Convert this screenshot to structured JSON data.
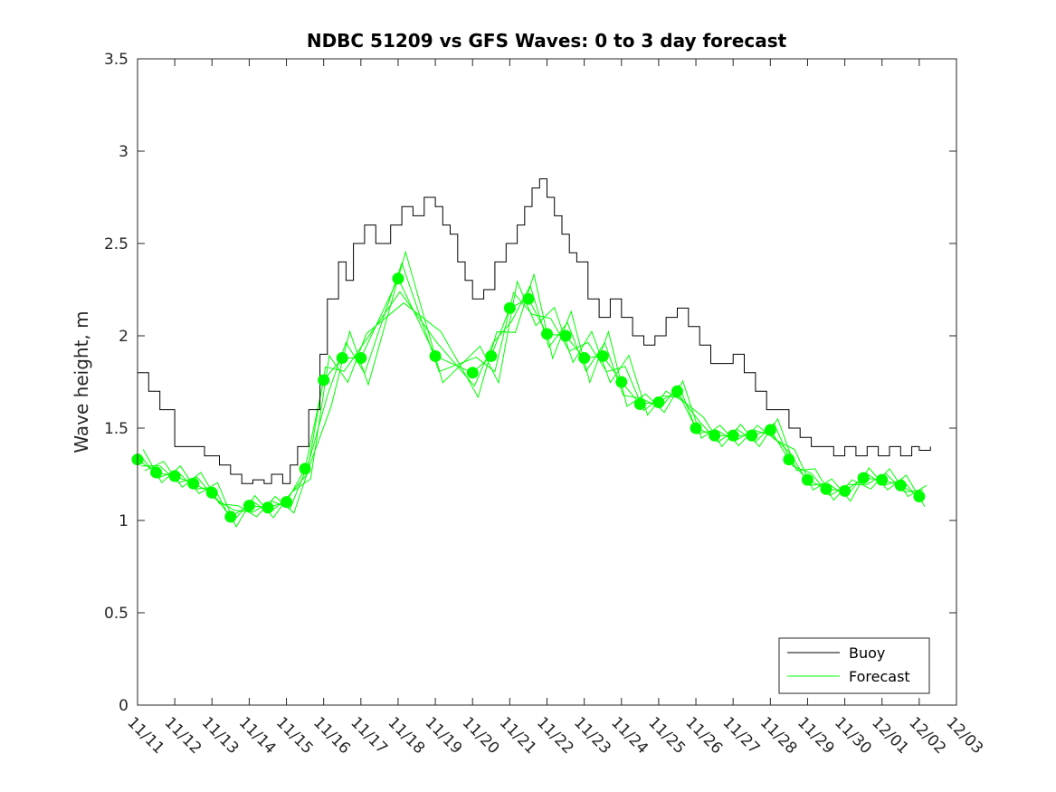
{
  "chart_data": {
    "type": "line",
    "title": "NDBC 51209 vs GFS Waves: 0 to 3 day forecast",
    "xlabel": "",
    "ylabel": "Wave height, m",
    "x_tick_labels": [
      "11/11",
      "11/12",
      "11/13",
      "11/14",
      "11/15",
      "11/16",
      "11/17",
      "11/18",
      "11/19",
      "11/20",
      "11/21",
      "11/22",
      "11/23",
      "11/24",
      "11/25",
      "11/26",
      "11/27",
      "11/28",
      "11/29",
      "11/30",
      "12/01",
      "12/02",
      "12/03"
    ],
    "y_tick_labels": [
      "0",
      "0.5",
      "1",
      "1.5",
      "2",
      "2.5",
      "3",
      "3.5"
    ],
    "y_ticks": [
      0,
      0.5,
      1,
      1.5,
      2,
      2.5,
      3,
      3.5
    ],
    "ylim": [
      0,
      3.5
    ],
    "xlim_days": [
      0,
      22
    ],
    "legend": {
      "position": "bottom-right",
      "entries": [
        "Buoy",
        "Forecast"
      ]
    },
    "colors": {
      "buoy": "#000000",
      "forecast": "#00ff00",
      "axis": "#262626"
    },
    "buoy": {
      "name": "Buoy",
      "days": [
        0,
        0.3,
        0.6,
        1.0,
        1.4,
        1.8,
        2.2,
        2.5,
        2.8,
        3.1,
        3.4,
        3.6,
        3.9,
        4.1,
        4.3,
        4.6,
        4.9,
        5.1,
        5.4,
        5.6,
        5.8,
        6.1,
        6.4,
        6.8,
        7.1,
        7.4,
        7.7,
        8.0,
        8.2,
        8.4,
        8.6,
        8.8,
        9.0,
        9.3,
        9.6,
        9.9,
        10.2,
        10.4,
        10.6,
        10.8,
        11.0,
        11.2,
        11.4,
        11.6,
        11.8,
        12.1,
        12.4,
        12.7,
        13.0,
        13.3,
        13.6,
        13.9,
        14.2,
        14.5,
        14.8,
        15.1,
        15.4,
        15.7,
        16.0,
        16.3,
        16.6,
        16.9,
        17.2,
        17.5,
        17.8,
        18.1,
        18.4,
        18.7,
        19.0,
        19.3,
        19.6,
        19.9,
        20.2,
        20.5,
        20.8,
        21.0,
        21.3
      ],
      "values": [
        1.8,
        1.7,
        1.6,
        1.4,
        1.4,
        1.35,
        1.3,
        1.25,
        1.2,
        1.22,
        1.2,
        1.25,
        1.2,
        1.3,
        1.4,
        1.6,
        1.9,
        2.2,
        2.4,
        2.3,
        2.5,
        2.6,
        2.5,
        2.6,
        2.7,
        2.65,
        2.75,
        2.7,
        2.6,
        2.55,
        2.4,
        2.3,
        2.2,
        2.25,
        2.4,
        2.5,
        2.6,
        2.7,
        2.8,
        2.85,
        2.75,
        2.65,
        2.55,
        2.45,
        2.4,
        2.2,
        2.1,
        2.2,
        2.1,
        2.0,
        1.95,
        2.0,
        2.1,
        2.15,
        2.05,
        1.95,
        1.85,
        1.85,
        1.9,
        1.8,
        1.7,
        1.6,
        1.6,
        1.5,
        1.45,
        1.4,
        1.4,
        1.35,
        1.4,
        1.35,
        1.4,
        1.35,
        1.4,
        1.35,
        1.4,
        1.38,
        1.4
      ]
    },
    "forecast_markers": {
      "name": "Forecast",
      "days": [
        0,
        0.5,
        1.0,
        1.5,
        2.0,
        2.5,
        3.0,
        3.5,
        4.0,
        4.5,
        5.0,
        5.5,
        6.0,
        7.0,
        8.0,
        9.0,
        9.5,
        10.0,
        10.5,
        11.0,
        11.5,
        12.0,
        12.5,
        13.0,
        13.5,
        14.0,
        14.5,
        15.0,
        15.5,
        16.0,
        16.5,
        17.0,
        17.5,
        18.0,
        18.5,
        19.0,
        19.5,
        20.0,
        20.5,
        21.0
      ],
      "values": [
        1.33,
        1.26,
        1.24,
        1.2,
        1.15,
        1.02,
        1.08,
        1.07,
        1.1,
        1.28,
        1.76,
        1.88,
        1.88,
        2.31,
        1.89,
        1.8,
        1.89,
        2.15,
        2.2,
        2.01,
        2.0,
        1.88,
        1.89,
        1.75,
        1.63,
        1.64,
        1.7,
        1.5,
        1.46,
        1.46,
        1.46,
        1.49,
        1.33,
        1.22,
        1.17,
        1.16,
        1.23,
        1.22,
        1.19,
        1.13
      ]
    }
  }
}
